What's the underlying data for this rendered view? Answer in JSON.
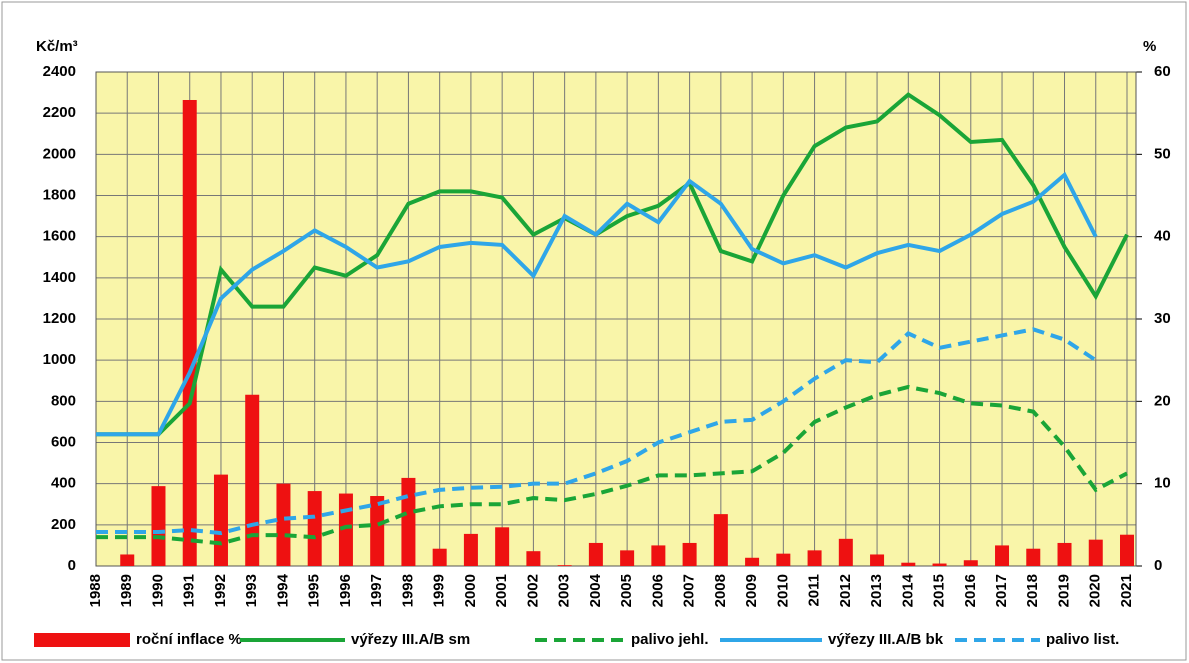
{
  "chart_data": {
    "type": "combo",
    "y_label": "Kč/m³",
    "y2_label": "%",
    "categories": [
      "1988",
      "1989",
      "1990",
      "1991",
      "1992",
      "1993",
      "1994",
      "1995",
      "1996",
      "1997",
      "1998",
      "1999",
      "2000",
      "2001",
      "2002",
      "2003",
      "2004",
      "2005",
      "2006",
      "2007",
      "2008",
      "2009",
      "2010",
      "2011",
      "2012",
      "2013",
      "2014",
      "2015",
      "2016",
      "2017",
      "2018",
      "2019",
      "2020",
      "2021"
    ],
    "ylim": [
      0,
      2400
    ],
    "yticks": [
      0,
      200,
      400,
      600,
      800,
      1000,
      1200,
      1400,
      1600,
      1800,
      2000,
      2200,
      2400
    ],
    "y2lim": [
      0,
      60
    ],
    "y2ticks": [
      0,
      10,
      20,
      30,
      40,
      50,
      60
    ],
    "grid": true,
    "background": "#f9f5a9",
    "series": [
      {
        "name": "roční inflace %",
        "type": "bar",
        "axis": "y2",
        "color": "#ee1111",
        "values": [
          null,
          1.4,
          9.7,
          56.6,
          11.1,
          20.8,
          10.0,
          9.1,
          8.8,
          8.5,
          10.7,
          2.1,
          3.9,
          4.7,
          1.8,
          0.1,
          2.8,
          1.9,
          2.5,
          2.8,
          6.3,
          1.0,
          1.5,
          1.9,
          3.3,
          1.4,
          0.4,
          0.3,
          0.7,
          2.5,
          2.1,
          2.8,
          3.2,
          3.8
        ]
      },
      {
        "name": "výřezy III.A/B sm",
        "type": "line",
        "dashed": false,
        "color": "#1aa537",
        "values": [
          640,
          640,
          640,
          790,
          1440,
          1260,
          1260,
          1450,
          1410,
          1510,
          1760,
          1820,
          1820,
          1790,
          1610,
          1690,
          1610,
          1700,
          1750,
          1860,
          1530,
          1480,
          1800,
          2040,
          2130,
          2160,
          2290,
          2190,
          2060,
          2070,
          1850,
          1550,
          1310,
          1610
        ]
      },
      {
        "name": "palivo jehl.",
        "type": "line",
        "dashed": true,
        "color": "#1aa537",
        "values": [
          140,
          140,
          140,
          125,
          110,
          150,
          150,
          140,
          190,
          200,
          260,
          290,
          300,
          300,
          330,
          320,
          350,
          390,
          440,
          440,
          450,
          460,
          550,
          700,
          770,
          830,
          870,
          840,
          790,
          780,
          750,
          580,
          370,
          450
        ]
      },
      {
        "name": "výřezy III.A/B bk",
        "type": "line",
        "dashed": false,
        "color": "#2fa6e8",
        "values": [
          640,
          640,
          640,
          940,
          1300,
          1440,
          1530,
          1630,
          1550,
          1450,
          1480,
          1550,
          1570,
          1560,
          1410,
          1700,
          1610,
          1760,
          1670,
          1870,
          1760,
          1540,
          1470,
          1510,
          1450,
          1520,
          1560,
          1530,
          1610,
          1710,
          1770,
          1900,
          1600,
          null
        ]
      },
      {
        "name": "palivo list.",
        "type": "line",
        "dashed": true,
        "color": "#2fa6e8",
        "values": [
          165,
          165,
          165,
          175,
          160,
          200,
          230,
          240,
          270,
          300,
          340,
          370,
          380,
          385,
          400,
          400,
          450,
          510,
          600,
          650,
          700,
          710,
          800,
          910,
          1000,
          990,
          1130,
          1060,
          1090,
          1120,
          1150,
          1100,
          1000,
          null
        ]
      }
    ]
  }
}
